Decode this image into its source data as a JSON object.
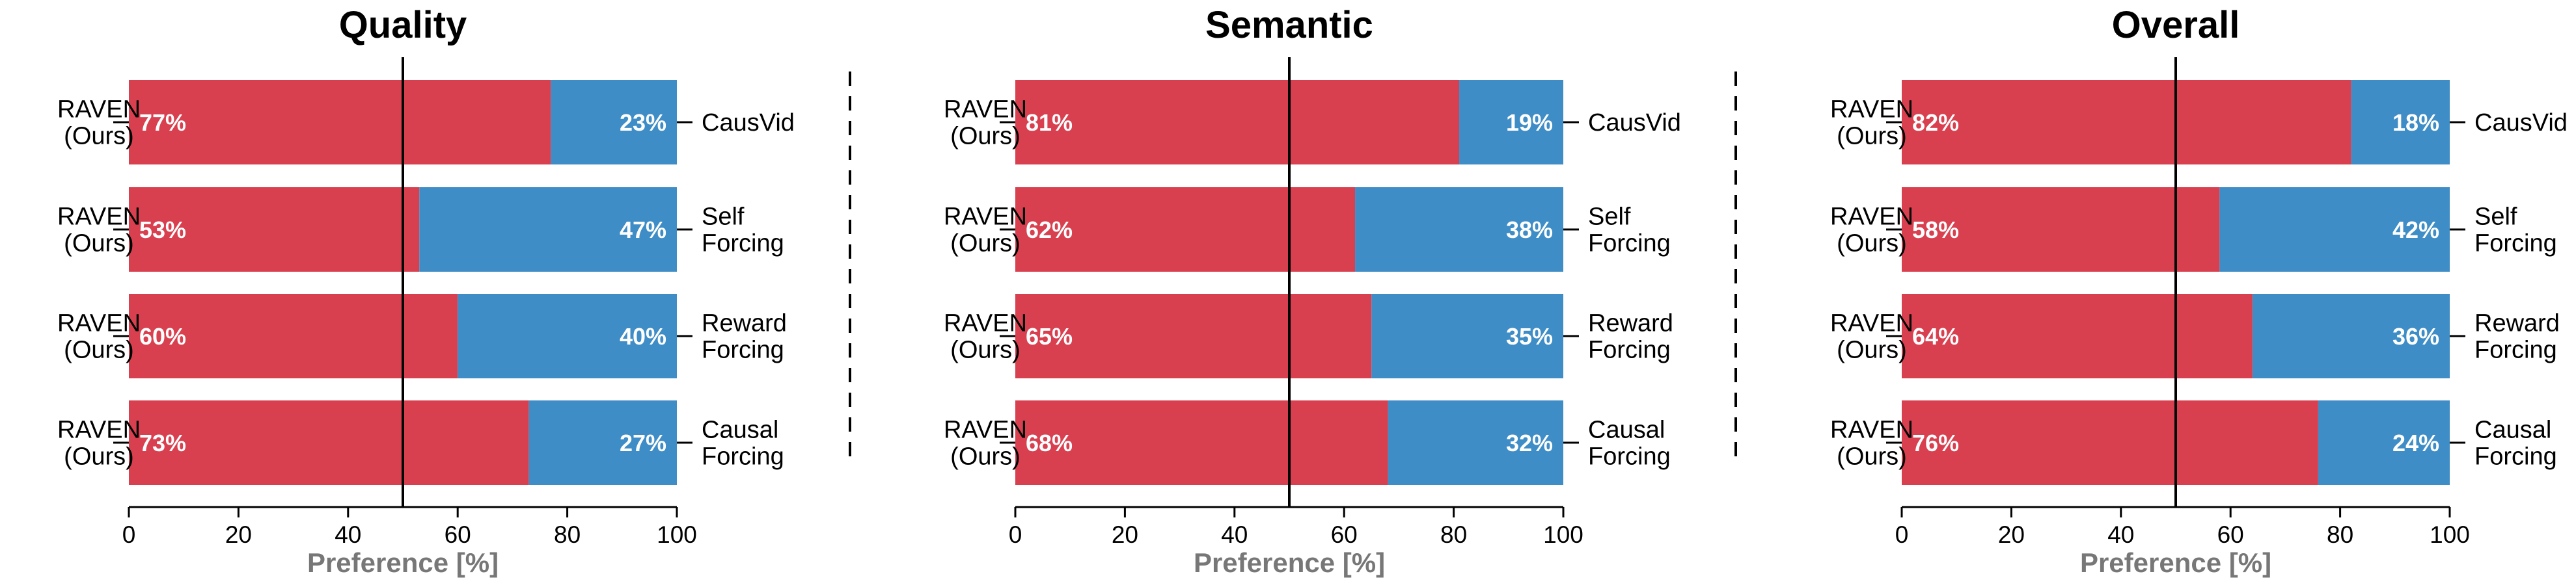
{
  "colors": {
    "ours": "#d9404f",
    "baseline": "#3e8dc6",
    "reference_line": "#000000",
    "divider": "#000000"
  },
  "chart_data": [
    {
      "type": "bar",
      "orientation": "horizontal-stacked",
      "title": "Quality",
      "xlabel": "Preference [%]",
      "xlim": [
        0,
        100
      ],
      "xticks": [
        0,
        20,
        40,
        60,
        80,
        100
      ],
      "reference_x": 50,
      "left_labels": [
        [
          "RAVEN",
          "(Ours)"
        ],
        [
          "RAVEN",
          "(Ours)"
        ],
        [
          "RAVEN",
          "(Ours)"
        ],
        [
          "RAVEN",
          "(Ours)"
        ]
      ],
      "right_labels": [
        [
          "CausVid"
        ],
        [
          "Self",
          "Forcing"
        ],
        [
          "Reward",
          "Forcing"
        ],
        [
          "Causal",
          "Forcing"
        ]
      ],
      "ours": [
        77,
        53,
        60,
        73
      ],
      "baseline": [
        23,
        47,
        40,
        27
      ],
      "ours_labels": [
        "77%",
        "53%",
        "60%",
        "73%"
      ],
      "baseline_labels": [
        "23%",
        "47%",
        "40%",
        "27%"
      ]
    },
    {
      "type": "bar",
      "orientation": "horizontal-stacked",
      "title": "Semantic",
      "xlabel": "Preference [%]",
      "xlim": [
        0,
        100
      ],
      "xticks": [
        0,
        20,
        40,
        60,
        80,
        100
      ],
      "reference_x": 50,
      "left_labels": [
        [
          "RAVEN",
          "(Ours)"
        ],
        [
          "RAVEN",
          "(Ours)"
        ],
        [
          "RAVEN",
          "(Ours)"
        ],
        [
          "RAVEN",
          "(Ours)"
        ]
      ],
      "right_labels": [
        [
          "CausVid"
        ],
        [
          "Self",
          "Forcing"
        ],
        [
          "Reward",
          "Forcing"
        ],
        [
          "Causal",
          "Forcing"
        ]
      ],
      "ours": [
        81,
        62,
        65,
        68
      ],
      "baseline": [
        19,
        38,
        35,
        32
      ],
      "ours_labels": [
        "81%",
        "62%",
        "65%",
        "68%"
      ],
      "baseline_labels": [
        "19%",
        "38%",
        "35%",
        "32%"
      ]
    },
    {
      "type": "bar",
      "orientation": "horizontal-stacked",
      "title": "Overall",
      "xlabel": "Preference [%]",
      "xlim": [
        0,
        100
      ],
      "xticks": [
        0,
        20,
        40,
        60,
        80,
        100
      ],
      "reference_x": 50,
      "left_labels": [
        [
          "RAVEN",
          "(Ours)"
        ],
        [
          "RAVEN",
          "(Ours)"
        ],
        [
          "RAVEN",
          "(Ours)"
        ],
        [
          "RAVEN",
          "(Ours)"
        ]
      ],
      "right_labels": [
        [
          "CausVid"
        ],
        [
          "Self",
          "Forcing"
        ],
        [
          "Reward",
          "Forcing"
        ],
        [
          "Causal",
          "Forcing"
        ]
      ],
      "ours": [
        82,
        58,
        64,
        76
      ],
      "baseline": [
        18,
        42,
        36,
        24
      ],
      "ours_labels": [
        "82%",
        "58%",
        "64%",
        "76%"
      ],
      "baseline_labels": [
        "18%",
        "42%",
        "36%",
        "24%"
      ]
    }
  ]
}
